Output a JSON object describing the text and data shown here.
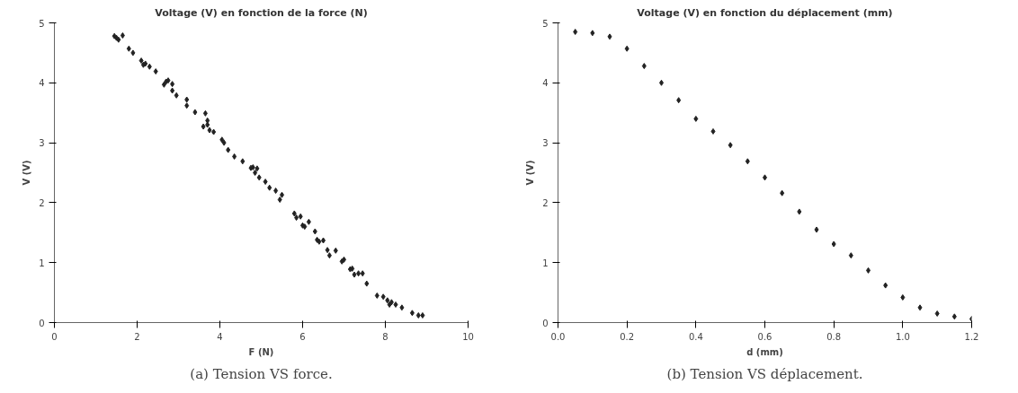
{
  "chart_data": [
    {
      "type": "scatter",
      "title": "Voltage (V) en fonction de la force (N)",
      "xlabel": "F (N)",
      "ylabel": "V (V)",
      "annotations": [
        "(a) Tension VS force."
      ],
      "marker": "diamond",
      "grid": false,
      "xlim": [
        0,
        10
      ],
      "xticks": [
        0,
        2,
        4,
        6,
        8,
        10
      ],
      "ylim": [
        0,
        5
      ],
      "yticks": [
        0,
        1,
        2,
        3,
        4,
        5
      ],
      "series": [
        {
          "color": "#222222",
          "x": [
            1.45,
            1.5,
            1.55,
            1.65,
            1.8,
            1.9,
            2.1,
            2.15,
            2.2,
            2.3,
            2.45,
            2.65,
            2.7,
            2.75,
            2.85,
            2.85,
            2.95,
            3.2,
            3.2,
            3.4,
            3.6,
            3.65,
            3.7,
            3.7,
            3.75,
            3.85,
            4.05,
            4.1,
            4.2,
            4.35,
            4.55,
            4.75,
            4.8,
            4.85,
            4.9,
            4.95,
            5.1,
            5.2,
            5.35,
            5.45,
            5.5,
            5.8,
            5.85,
            5.95,
            6.0,
            6.05,
            6.15,
            6.3,
            6.35,
            6.4,
            6.5,
            6.6,
            6.65,
            6.8,
            6.95,
            7.0,
            7.15,
            7.2,
            7.25,
            7.35,
            7.45,
            7.55,
            7.8,
            7.95,
            8.05,
            8.1,
            8.15,
            8.25,
            8.4,
            8.65,
            8.8,
            8.9
          ],
          "values": [
            4.78,
            4.75,
            4.72,
            4.79,
            4.57,
            4.5,
            4.37,
            4.3,
            4.32,
            4.27,
            4.19,
            3.97,
            4.02,
            4.04,
            3.98,
            3.87,
            3.79,
            3.72,
            3.62,
            3.51,
            3.27,
            3.49,
            3.37,
            3.3,
            3.21,
            3.18,
            3.05,
            3.0,
            2.88,
            2.77,
            2.69,
            2.58,
            2.59,
            2.5,
            2.57,
            2.42,
            2.35,
            2.25,
            2.2,
            2.05,
            2.13,
            1.82,
            1.75,
            1.77,
            1.62,
            1.6,
            1.68,
            1.52,
            1.38,
            1.35,
            1.37,
            1.21,
            1.12,
            1.2,
            1.02,
            1.05,
            0.89,
            0.9,
            0.8,
            0.82,
            0.82,
            0.65,
            0.45,
            0.43,
            0.37,
            0.3,
            0.34,
            0.3,
            0.25,
            0.16,
            0.12,
            0.12
          ]
        }
      ]
    },
    {
      "type": "scatter",
      "title": "Voltage (V) en fonction du déplacement (mm)",
      "xlabel": "d (mm)",
      "ylabel": "V (V)",
      "annotations": [
        "(b) Tension VS déplacement."
      ],
      "marker": "diamond",
      "grid": false,
      "xlim": [
        0,
        1.2
      ],
      "xticks": [
        {
          "value": 0,
          "label": "0.0"
        },
        0.2,
        0.4,
        0.6,
        0.8,
        {
          "value": 1,
          "label": "1.0"
        },
        1.2
      ],
      "ylim": [
        0,
        5
      ],
      "yticks": [
        0,
        1,
        2,
        3,
        4,
        5
      ],
      "series": [
        {
          "color": "#222222",
          "x": [
            0.05,
            0.1,
            0.15,
            0.2,
            0.25,
            0.3,
            0.35,
            0.4,
            0.45,
            0.5,
            0.55,
            0.6,
            0.65,
            0.7,
            0.75,
            0.8,
            0.85,
            0.9,
            0.95,
            1.0,
            1.05,
            1.1,
            1.15,
            1.2
          ],
          "values": [
            4.85,
            4.83,
            4.77,
            4.57,
            4.28,
            4.0,
            3.71,
            3.4,
            3.19,
            2.96,
            2.69,
            2.42,
            2.16,
            1.85,
            1.55,
            1.31,
            1.12,
            0.87,
            0.62,
            0.42,
            0.25,
            0.15,
            0.1,
            0.06
          ]
        }
      ]
    }
  ]
}
